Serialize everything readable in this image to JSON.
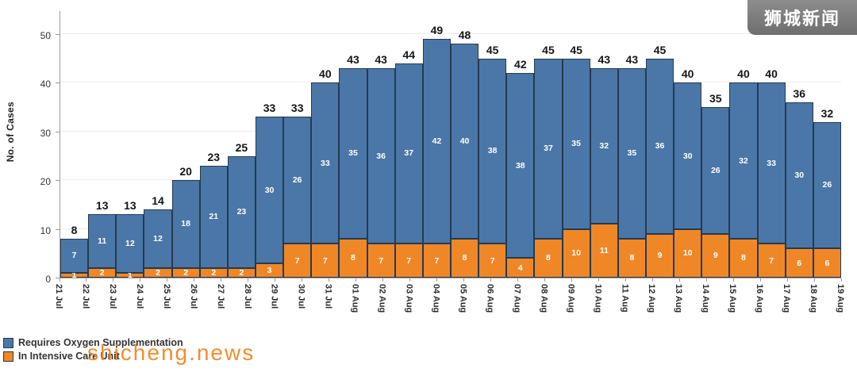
{
  "watermarks": {
    "top_right": "狮城新闻",
    "bottom_left": "shicheng.news"
  },
  "chart_data": {
    "type": "bar",
    "stacked": true,
    "title": "",
    "ylabel": "No. of Cases",
    "ylim": [
      0,
      50
    ],
    "yticks": [
      0,
      10,
      20,
      30,
      40,
      50
    ],
    "grid": true,
    "legend_position": "bottom-left",
    "bar_border_color": "#253a50",
    "x_axis_edge_labels": [
      "21 Jul",
      "22 Jul",
      "23 Jul",
      "24 Jul",
      "25 Jul",
      "26 Jul",
      "27 Jul",
      "28 Jul",
      "29 Jul",
      "30 Jul",
      "31 Jul",
      "01 Aug",
      "02 Aug",
      "03 Aug",
      "04 Aug",
      "05 Aug",
      "06 Aug",
      "07 Aug",
      "08 Aug",
      "09 Aug",
      "10 Aug",
      "11 Aug",
      "12 Aug",
      "13 Aug",
      "14 Aug",
      "15 Aug",
      "16 Aug",
      "17 Aug",
      "18 Aug",
      "19 Aug"
    ],
    "categories": [
      "21 Jul",
      "22 Jul",
      "23 Jul",
      "24 Jul",
      "25 Jul",
      "26 Jul",
      "27 Jul",
      "28 Jul",
      "29 Jul",
      "30 Jul",
      "31 Jul",
      "01 Aug",
      "02 Aug",
      "03 Aug",
      "04 Aug",
      "05 Aug",
      "06 Aug",
      "07 Aug",
      "08 Aug",
      "09 Aug",
      "10 Aug",
      "11 Aug",
      "12 Aug",
      "13 Aug",
      "14 Aug",
      "15 Aug",
      "16 Aug",
      "17 Aug"
    ],
    "series": [
      {
        "name": "Requires Oxygen Supplementation",
        "color": "#4a77a7",
        "values": [
          7,
          11,
          12,
          12,
          18,
          21,
          23,
          30,
          26,
          33,
          35,
          36,
          37,
          42,
          40,
          38,
          38,
          37,
          35,
          32,
          35,
          36,
          30,
          26,
          32,
          33,
          30,
          26
        ]
      },
      {
        "name": "In Intensive Care Unit",
        "color": "#f08727",
        "values": [
          1,
          2,
          1,
          2,
          2,
          2,
          2,
          3,
          7,
          7,
          8,
          7,
          7,
          7,
          8,
          7,
          4,
          8,
          10,
          11,
          8,
          9,
          10,
          9,
          8,
          7,
          6,
          6
        ]
      }
    ],
    "totals": [
      8,
      13,
      13,
      14,
      20,
      23,
      25,
      33,
      33,
      40,
      43,
      43,
      44,
      49,
      48,
      45,
      42,
      45,
      45,
      43,
      43,
      45,
      40,
      35,
      40,
      40,
      36,
      32
    ]
  }
}
